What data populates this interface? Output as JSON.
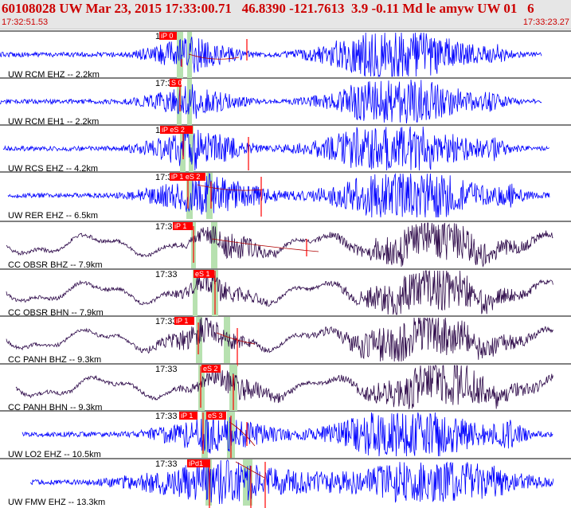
{
  "header": {
    "title": "60108028 UW Mar 23, 2015 17:33:00.71   46.8390 -121.7613  3.9 -0.11 Md le amyw UW 01   6",
    "start_time": "17:32:51.53",
    "end_time": "17:33:23.27"
  },
  "colors": {
    "background": "#ffffff",
    "header_band": "#e6e6e6",
    "header_text": "#cc0000",
    "pick": "#ff0000",
    "pick_window": "#b7e1b0",
    "short_period_trace": "#0000ff",
    "broadband_trace": "#2e0a4a",
    "envelope": "#b00000"
  },
  "chart_data": {
    "type": "line",
    "time_range": [
      "17:32:51.53",
      "17:33:23.27"
    ],
    "time_label": "17:33",
    "traces": [
      {
        "name": "UW RCM EHZ -- 2.2km",
        "picks": [
          "iP 0"
        ],
        "trace_color": "blue"
      },
      {
        "name": "UW RCM EH1 -- 2.2km",
        "picks": [
          "S 0"
        ],
        "trace_color": "blue"
      },
      {
        "name": "UW RCS EHZ -- 4.2km",
        "picks": [
          "iP eS 2"
        ],
        "trace_color": "blue"
      },
      {
        "name": "UW RER EHZ -- 6.5km",
        "picks": [
          "iP 1 eS 2"
        ],
        "trace_color": "blue"
      },
      {
        "name": "CC OBSR BHZ -- 7.9km",
        "picks": [
          "iP 1"
        ],
        "trace_color": "dark-purple"
      },
      {
        "name": "CC OBSR BHN -- 7.9km",
        "picks": [
          "eS 1"
        ],
        "trace_color": "dark-purple"
      },
      {
        "name": "CC PANH BHZ -- 9.3km",
        "picks": [
          "iP 1"
        ],
        "trace_color": "dark-purple"
      },
      {
        "name": "CC PANH BHN -- 9.3km",
        "picks": [
          "eS 2"
        ],
        "trace_color": "dark-purple"
      },
      {
        "name": "UW LO2 EHZ -- 10.5km",
        "picks": [
          "iP 1",
          "eS 3"
        ],
        "trace_color": "blue"
      },
      {
        "name": "UW FMW EHZ -- 13.3km",
        "picks": [
          "iPd1"
        ],
        "trace_color": "blue"
      }
    ]
  }
}
